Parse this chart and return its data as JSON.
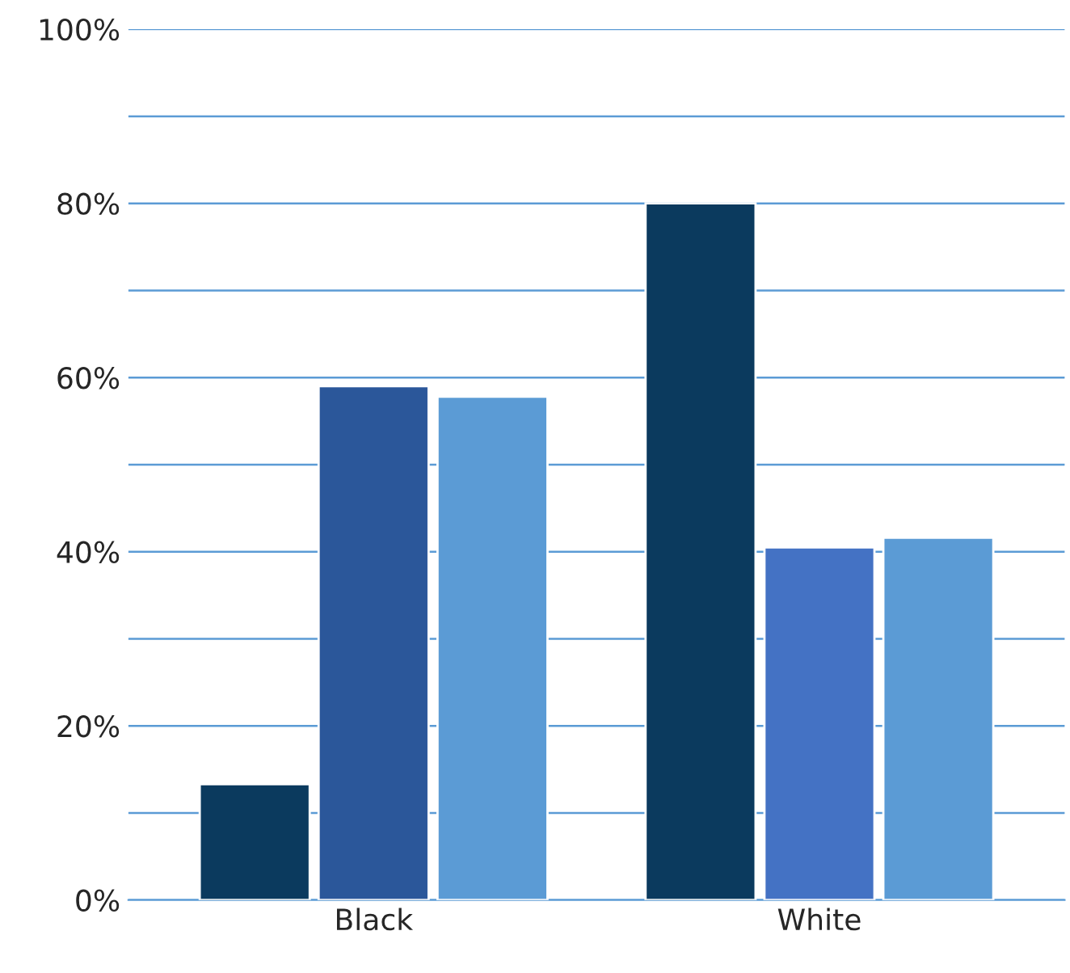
{
  "chart_data": {
    "type": "bar",
    "categories": [
      "Black",
      "White"
    ],
    "series": [
      {
        "colors": [
          "#0b3a5e",
          "#0b3a5e"
        ],
        "values": [
          13.3,
          80
        ]
      },
      {
        "colors": [
          "#2b579a",
          "#4472c4"
        ],
        "values": [
          59,
          40.5
        ]
      },
      {
        "colors": [
          "#5b9bd5",
          "#5b9bd5"
        ],
        "values": [
          57.8,
          41.6
        ]
      }
    ],
    "ylim": [
      0,
      100
    ],
    "yticks": [
      {
        "value": 0,
        "label": "0%"
      },
      {
        "value": 10,
        "label": null
      },
      {
        "value": 20,
        "label": "20%"
      },
      {
        "value": 30,
        "label": null
      },
      {
        "value": 40,
        "label": "40%"
      },
      {
        "value": 50,
        "label": null
      },
      {
        "value": 60,
        "label": "60%"
      },
      {
        "value": 70,
        "label": null
      },
      {
        "value": 80,
        "label": "80%"
      },
      {
        "value": 90,
        "label": null
      },
      {
        "value": 100,
        "label": "100%"
      }
    ],
    "grid": "y",
    "legend": false
  }
}
